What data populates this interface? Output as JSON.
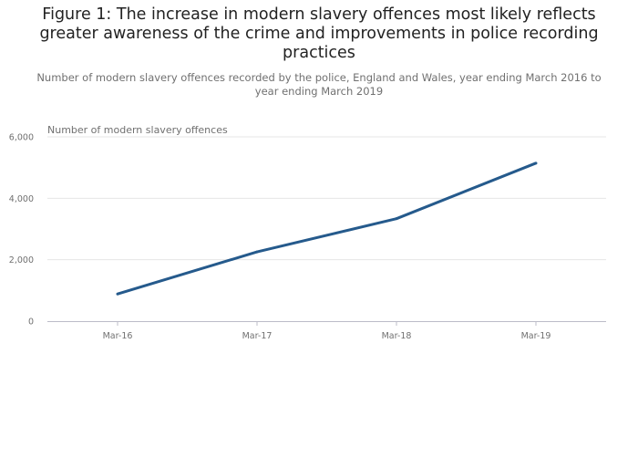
{
  "header": {
    "title": "Figure 1: The increase in modern slavery offences most likely reflects greater awareness of the crime and improvements in police recording practices",
    "subtitle": "Number of modern slavery offences recorded by the police, England and Wales, year ending March 2016 to year ending March 2019"
  },
  "colors": {
    "line": "#255a8c",
    "grid": "#e6e6e6",
    "axis": "#bcbcc8"
  },
  "chart_data": {
    "type": "line",
    "title": "Figure 1: The increase in modern slavery offences most likely reflects greater awareness of the crime and improvements in police recording practices",
    "subtitle": "Number of modern slavery offences recorded by the police, England and Wales, year ending March 2016 to year ending March 2019",
    "xlabel": "",
    "ylabel": "Number of modern slavery offences",
    "categories": [
      "Mar-16",
      "Mar-17",
      "Mar-18",
      "Mar-19"
    ],
    "series": [
      {
        "name": "Number of modern slavery offences",
        "values": [
          884,
          2255,
          3337,
          5144
        ]
      }
    ],
    "ylim": [
      0,
      6000
    ],
    "yticks": [
      0,
      2000,
      4000,
      6000
    ],
    "ytick_labels": [
      "0",
      "2,000",
      "4,000",
      "6,000"
    ],
    "grid": true,
    "legend": "none"
  }
}
